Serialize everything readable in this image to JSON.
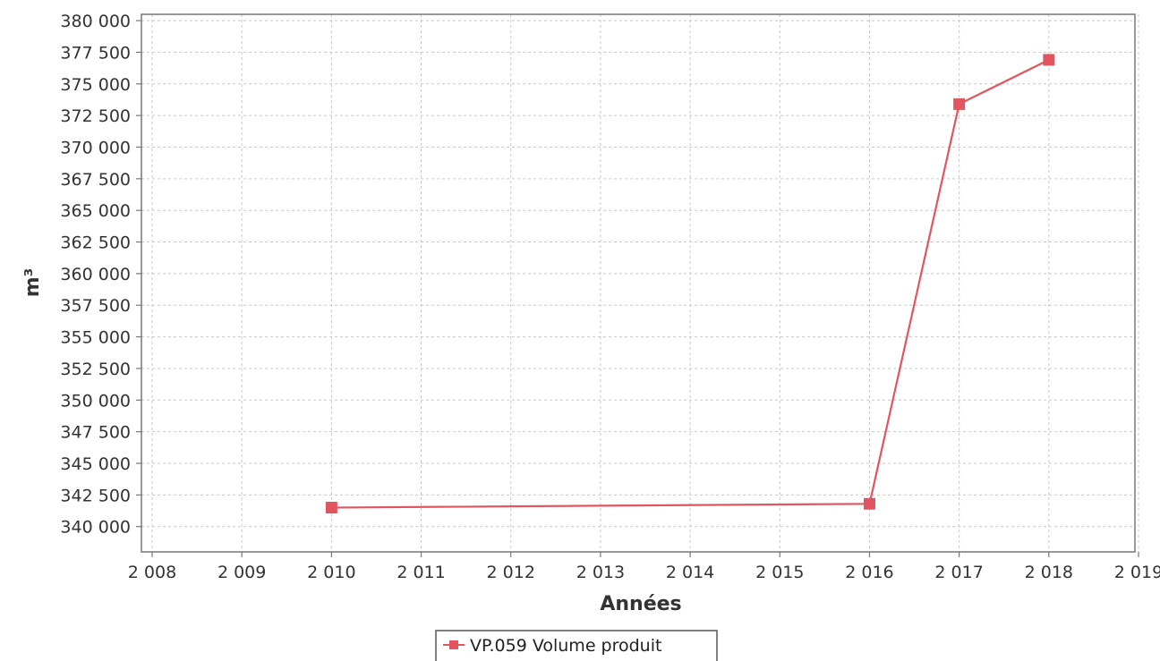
{
  "chart_data": {
    "type": "line",
    "title": "",
    "xlabel": "Années",
    "ylabel": "m³",
    "xlim": [
      2008,
      2019
    ],
    "ylim": [
      338000,
      380500
    ],
    "x_ticks": [
      2008,
      2009,
      2010,
      2011,
      2012,
      2013,
      2014,
      2015,
      2016,
      2017,
      2018,
      2019
    ],
    "x_tick_labels": [
      "2 008",
      "2 009",
      "2 010",
      "2 011",
      "2 012",
      "2 013",
      "2 014",
      "2 015",
      "2 016",
      "2 017",
      "2 018",
      "2 019"
    ],
    "y_ticks": [
      340000,
      342500,
      345000,
      347500,
      350000,
      352500,
      355000,
      357500,
      360000,
      362500,
      365000,
      367500,
      370000,
      372500,
      375000,
      377500,
      380000
    ],
    "y_tick_labels": [
      "340 000",
      "342 500",
      "345 000",
      "347 500",
      "350 000",
      "352 500",
      "355 000",
      "357 500",
      "360 000",
      "362 500",
      "365 000",
      "367 500",
      "370 000",
      "372 500",
      "375 000",
      "377 500",
      "380 000"
    ],
    "grid": true,
    "legend_position": "bottom",
    "series": [
      {
        "name": "VP.059 Volume produit",
        "color": "#e05560",
        "marker": "square",
        "x": [
          2010,
          2016,
          2017,
          2018
        ],
        "y": [
          341500,
          341800,
          373400,
          376900
        ]
      }
    ]
  }
}
